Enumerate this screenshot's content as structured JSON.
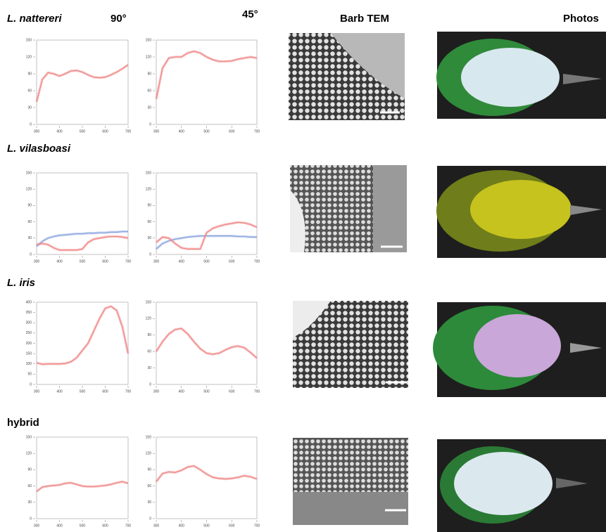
{
  "headers": [
    "90°",
    "45°",
    "Barb TEM",
    "Photos"
  ],
  "rows": [
    {
      "label": "L. nattereri"
    },
    {
      "label": "L. vilasboasi"
    },
    {
      "label": "L. iris"
    },
    {
      "label": "hybrid"
    }
  ],
  "chart_data": [
    {
      "type": "line",
      "x": [
        300,
        325,
        350,
        375,
        400,
        425,
        450,
        475,
        500,
        525,
        550,
        575,
        600,
        625,
        650,
        675,
        700
      ],
      "xlim": [
        300,
        700
      ],
      "xticks": [
        300,
        400,
        500,
        600,
        700
      ],
      "ylim": [
        0,
        150
      ],
      "yticks": [
        0,
        30,
        60,
        90,
        120,
        150
      ],
      "series": [
        {
          "color": "#f08a8a",
          "values": [
            40,
            80,
            92,
            90,
            86,
            90,
            95,
            96,
            93,
            88,
            84,
            83,
            84,
            88,
            93,
            99,
            106
          ]
        }
      ]
    },
    {
      "type": "line",
      "x": [
        300,
        325,
        350,
        375,
        400,
        425,
        450,
        475,
        500,
        525,
        550,
        575,
        600,
        625,
        650,
        675,
        700
      ],
      "xlim": [
        300,
        700
      ],
      "xticks": [
        300,
        400,
        500,
        600,
        700
      ],
      "ylim": [
        0,
        150
      ],
      "yticks": [
        0,
        30,
        60,
        90,
        120,
        150
      ],
      "series": [
        {
          "color": "#f08a8a",
          "values": [
            45,
            100,
            118,
            120,
            120,
            127,
            130,
            127,
            120,
            115,
            112,
            112,
            113,
            116,
            118,
            120,
            118
          ]
        }
      ]
    },
    {
      "type": "line",
      "x": [
        300,
        325,
        350,
        375,
        400,
        425,
        450,
        475,
        500,
        525,
        550,
        575,
        600,
        625,
        650,
        675,
        700
      ],
      "xlim": [
        300,
        700
      ],
      "xticks": [
        300,
        400,
        500,
        600,
        700
      ],
      "ylim": [
        0,
        150
      ],
      "yticks": [
        0,
        30,
        60,
        90,
        120,
        150
      ],
      "series": [
        {
          "color": "#8fa8e0",
          "values": [
            15,
            24,
            30,
            33,
            35,
            36,
            37,
            38,
            38,
            39,
            39,
            40,
            40,
            41,
            41,
            42,
            42
          ]
        },
        {
          "color": "#f08a8a",
          "values": [
            18,
            20,
            18,
            12,
            8,
            8,
            8,
            8,
            10,
            22,
            28,
            30,
            32,
            33,
            33,
            32,
            30
          ]
        }
      ]
    },
    {
      "type": "line",
      "x": [
        300,
        325,
        350,
        375,
        400,
        425,
        450,
        475,
        500,
        525,
        550,
        575,
        600,
        625,
        650,
        675,
        700
      ],
      "xlim": [
        300,
        700
      ],
      "xticks": [
        300,
        400,
        500,
        600,
        700
      ],
      "ylim": [
        0,
        150
      ],
      "yticks": [
        0,
        30,
        60,
        90,
        120,
        150
      ],
      "series": [
        {
          "color": "#8fa8e0",
          "values": [
            10,
            20,
            25,
            28,
            30,
            32,
            33,
            34,
            34,
            34,
            34,
            34,
            34,
            33,
            33,
            32,
            32
          ]
        },
        {
          "color": "#f08a8a",
          "values": [
            22,
            32,
            30,
            20,
            12,
            10,
            10,
            10,
            40,
            48,
            52,
            55,
            57,
            59,
            58,
            55,
            50
          ]
        }
      ]
    },
    {
      "type": "line",
      "x": [
        300,
        325,
        350,
        375,
        400,
        425,
        450,
        475,
        500,
        525,
        550,
        575,
        600,
        625,
        650,
        675,
        700
      ],
      "xlim": [
        300,
        700
      ],
      "xticks": [
        300,
        400,
        500,
        600,
        700
      ],
      "ylim": [
        0,
        400
      ],
      "yticks": [
        0,
        50,
        100,
        150,
        200,
        250,
        300,
        350,
        400
      ],
      "series": [
        {
          "color": "#f08a8a",
          "values": [
            105,
            98,
            100,
            100,
            100,
            102,
            110,
            130,
            165,
            200,
            260,
            320,
            370,
            380,
            360,
            280,
            150
          ]
        }
      ]
    },
    {
      "type": "line",
      "x": [
        300,
        325,
        350,
        375,
        400,
        425,
        450,
        475,
        500,
        525,
        550,
        575,
        600,
        625,
        650,
        675,
        700
      ],
      "xlim": [
        300,
        700
      ],
      "xticks": [
        300,
        400,
        500,
        600,
        700
      ],
      "ylim": [
        0,
        150
      ],
      "yticks": [
        0,
        30,
        60,
        90,
        120,
        150
      ],
      "series": [
        {
          "color": "#f08a8a",
          "values": [
            60,
            78,
            92,
            100,
            102,
            92,
            78,
            65,
            57,
            55,
            57,
            63,
            68,
            70,
            67,
            58,
            48
          ]
        }
      ]
    },
    {
      "type": "line",
      "x": [
        300,
        325,
        350,
        375,
        400,
        425,
        450,
        475,
        500,
        525,
        550,
        575,
        600,
        625,
        650,
        675,
        700
      ],
      "xlim": [
        300,
        700
      ],
      "xticks": [
        300,
        400,
        500,
        600,
        700
      ],
      "ylim": [
        0,
        150
      ],
      "yticks": [
        0,
        30,
        60,
        90,
        120,
        150
      ],
      "series": [
        {
          "color": "#f08a8a",
          "values": [
            50,
            58,
            60,
            61,
            62,
            65,
            66,
            63,
            60,
            59,
            59,
            60,
            61,
            63,
            66,
            68,
            65
          ]
        }
      ]
    },
    {
      "type": "line",
      "x": [
        300,
        325,
        350,
        375,
        400,
        425,
        450,
        475,
        500,
        525,
        550,
        575,
        600,
        625,
        650,
        675,
        700
      ],
      "xlim": [
        300,
        700
      ],
      "xticks": [
        300,
        400,
        500,
        600,
        700
      ],
      "ylim": [
        0,
        150
      ],
      "yticks": [
        0,
        30,
        60,
        90,
        120,
        150
      ],
      "series": [
        {
          "color": "#f08a8a",
          "values": [
            68,
            83,
            86,
            85,
            89,
            95,
            97,
            90,
            82,
            76,
            74,
            73,
            74,
            76,
            79,
            77,
            73
          ]
        }
      ]
    }
  ]
}
